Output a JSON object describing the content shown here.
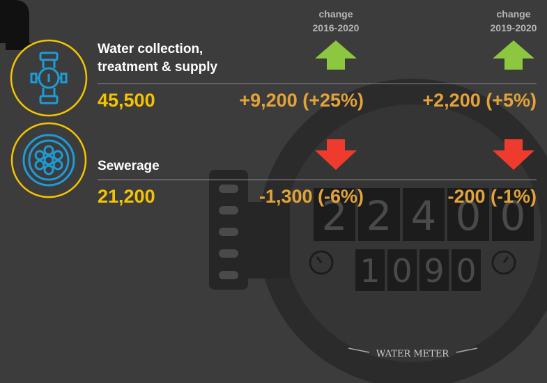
{
  "columns": [
    {
      "label": "change",
      "period": "2016-2020"
    },
    {
      "label": "change",
      "period": "2019-2020"
    }
  ],
  "rows": [
    {
      "label_lines": [
        "Water collection,",
        "treatment & supply"
      ],
      "value": "45,500",
      "changes": [
        "+9,200 (+25%)",
        "+2,200 (+5%)"
      ]
    },
    {
      "label_lines": [
        "Sewerage"
      ],
      "value": "21,200",
      "changes": [
        "-1,300 (-6%)",
        "-200 (-1%)"
      ]
    }
  ],
  "meter": {
    "reading": [
      "2",
      "2",
      "4",
      "0",
      "0"
    ],
    "subreading": [
      "1",
      "0",
      "9",
      "0"
    ],
    "label": "WATER METER"
  }
}
